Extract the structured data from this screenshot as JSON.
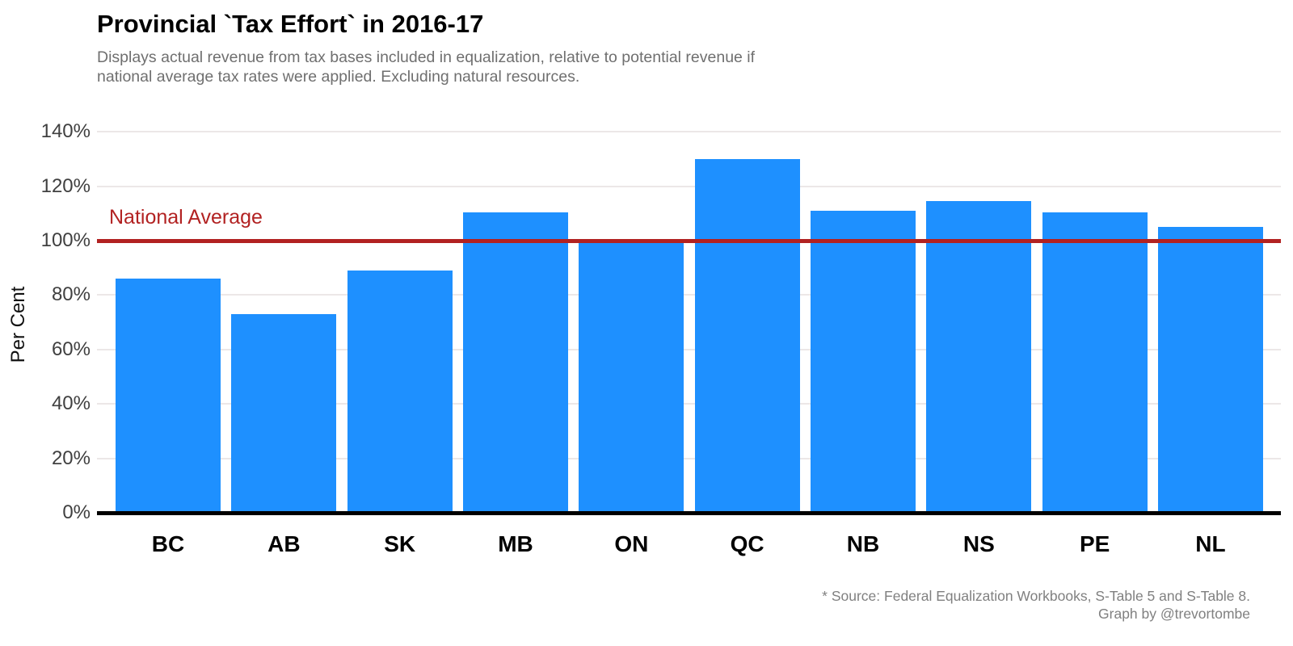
{
  "header": {
    "title": "Provincial `Tax Effort` in 2016-17",
    "subtitle_line1": "Displays actual revenue from tax bases included in equalization, relative to potential revenue if",
    "subtitle_line2": "national average tax rates were applied. Excluding natural resources."
  },
  "chart_data": {
    "type": "bar",
    "title": "Provincial `Tax Effort` in 2016-17",
    "categories": [
      "BC",
      "AB",
      "SK",
      "MB",
      "ON",
      "QC",
      "NB",
      "NS",
      "PE",
      "NL"
    ],
    "values": [
      86,
      73,
      89,
      110.5,
      100,
      130,
      111,
      114.5,
      110.5,
      105
    ],
    "xlabel": "",
    "ylabel": "Per Cent",
    "ylim": [
      0,
      140
    ],
    "yticks": [
      0,
      20,
      40,
      60,
      80,
      100,
      120,
      140
    ],
    "ytick_labels": [
      "0%",
      "20%",
      "40%",
      "60%",
      "80%",
      "100%",
      "120%",
      "140%"
    ],
    "grid": true,
    "legend": "none",
    "bar_color": "#1E90FF",
    "reference_line": {
      "value": 100,
      "label": "National Average",
      "color": "#B22222"
    }
  },
  "footer": {
    "source_line1": "* Source: Federal Equalization Workbooks, S-Table 5 and S-Table 8.",
    "source_line2": "Graph by @trevortombe"
  }
}
